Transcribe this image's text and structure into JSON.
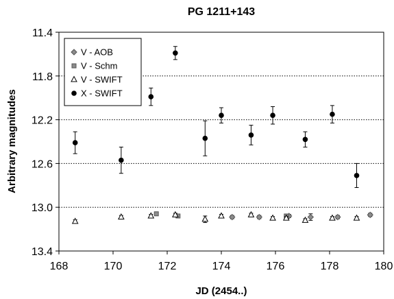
{
  "chart_data": {
    "type": "scatter",
    "title": "PG 1211+143",
    "xlabel": "JD (2454..)",
    "ylabel": "Arbitrary magnitudes",
    "xlim": [
      168,
      180
    ],
    "ylim": [
      13.4,
      11.4
    ],
    "y_inverted": true,
    "x_ticks": [
      168,
      170,
      172,
      174,
      176,
      178,
      180
    ],
    "x_tick_labels": [
      "168",
      "170",
      "172",
      "174",
      "176",
      "178",
      "180"
    ],
    "y_ticks": [
      11.4,
      11.8,
      12.2,
      12.6,
      13.0,
      13.4
    ],
    "y_tick_labels": [
      "11.4",
      "11.8",
      "12.2",
      "12.6",
      "13.0",
      "13.4"
    ],
    "grid": "horizontal dotted",
    "legend_position": "top-left",
    "series": [
      {
        "name": "V - AOB",
        "marker": "diamond",
        "color": "#8c8c8c",
        "points": [
          {
            "x": 174.4,
            "y": 13.09,
            "err": 0.015
          },
          {
            "x": 175.4,
            "y": 13.09,
            "err": 0.015
          },
          {
            "x": 176.5,
            "y": 13.08,
            "err": 0.015
          },
          {
            "x": 177.3,
            "y": 13.09,
            "err": 0.03
          },
          {
            "x": 178.3,
            "y": 13.09,
            "err": 0.015
          },
          {
            "x": 179.5,
            "y": 13.07,
            "err": 0.015
          }
        ]
      },
      {
        "name": "V - Schm",
        "marker": "square",
        "color": "#8c8c8c",
        "points": [
          {
            "x": 171.6,
            "y": 13.06,
            "err": 0.015
          },
          {
            "x": 172.4,
            "y": 13.08,
            "err": 0.015
          },
          {
            "x": 176.4,
            "y": 13.08,
            "err": 0.015
          }
        ]
      },
      {
        "name": "V - SWIFT",
        "marker": "triangle",
        "color": "#ffffff",
        "points": [
          {
            "x": 168.6,
            "y": 13.13,
            "err": 0.015
          },
          {
            "x": 170.3,
            "y": 13.09,
            "err": 0.015
          },
          {
            "x": 171.4,
            "y": 13.08,
            "err": 0.015
          },
          {
            "x": 172.3,
            "y": 13.07,
            "err": 0.015
          },
          {
            "x": 173.4,
            "y": 13.11,
            "err": 0.03
          },
          {
            "x": 174.0,
            "y": 13.08,
            "err": 0.015
          },
          {
            "x": 175.1,
            "y": 13.07,
            "err": 0.015
          },
          {
            "x": 175.9,
            "y": 13.1,
            "err": 0.015
          },
          {
            "x": 176.4,
            "y": 13.1,
            "err": 0.015
          },
          {
            "x": 177.1,
            "y": 13.12,
            "err": 0.015
          },
          {
            "x": 178.1,
            "y": 13.1,
            "err": 0.015
          },
          {
            "x": 179.0,
            "y": 13.1,
            "err": 0.015
          }
        ]
      },
      {
        "name": "X - SWIFT",
        "marker": "circle",
        "color": "#000000",
        "points": [
          {
            "x": 168.6,
            "y": 12.41,
            "err": 0.1
          },
          {
            "x": 170.3,
            "y": 12.57,
            "err": 0.12
          },
          {
            "x": 171.4,
            "y": 11.99,
            "err": 0.08
          },
          {
            "x": 172.3,
            "y": 11.59,
            "err": 0.06
          },
          {
            "x": 173.4,
            "y": 12.37,
            "err": 0.16
          },
          {
            "x": 174.0,
            "y": 12.16,
            "err": 0.07
          },
          {
            "x": 175.1,
            "y": 12.34,
            "err": 0.09
          },
          {
            "x": 175.9,
            "y": 12.16,
            "err": 0.08
          },
          {
            "x": 177.1,
            "y": 12.38,
            "err": 0.07
          },
          {
            "x": 178.1,
            "y": 12.15,
            "err": 0.08
          },
          {
            "x": 179.0,
            "y": 12.71,
            "err": 0.11
          }
        ]
      }
    ]
  }
}
